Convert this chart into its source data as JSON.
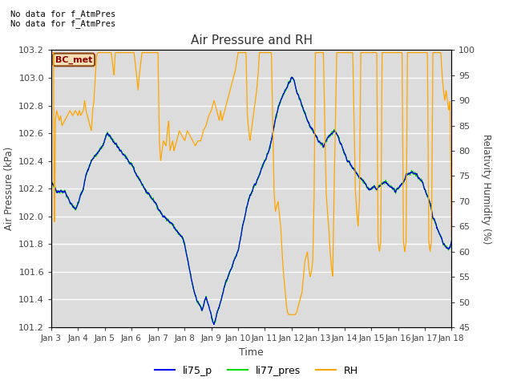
{
  "title": "Air Pressure and RH",
  "xlabel": "Time",
  "ylabel_left": "Air Pressure (kPa)",
  "ylabel_right": "Relativity Humidity (%)",
  "ylim_left": [
    101.2,
    103.2
  ],
  "ylim_right": [
    45,
    100
  ],
  "yticks_left": [
    101.2,
    101.4,
    101.6,
    101.8,
    102.0,
    102.2,
    102.4,
    102.6,
    102.8,
    103.0,
    103.2
  ],
  "yticks_right": [
    45,
    50,
    55,
    60,
    65,
    70,
    75,
    80,
    85,
    90,
    95,
    100
  ],
  "xtick_labels": [
    "Jan 3",
    "Jan 4",
    "Jan 5",
    "Jan 6",
    "Jan 7",
    "Jan 8",
    "Jan 9",
    "Jan 10",
    "Jan 11",
    "Jan 12",
    "Jan 13",
    "Jan 14",
    "Jan 15",
    "Jan 16",
    "Jan 17",
    "Jan 18"
  ],
  "no_data_text1": "No data for f_AtmPres",
  "no_data_text2": "No data for f_AtmPres",
  "legend_label_text": "BC_met",
  "color_li75": "#0000EE",
  "color_li77": "#00DD00",
  "color_rh": "#FFA500",
  "bg_color": "#DCDCDC",
  "legend_entries": [
    "li75_p",
    "li77_pres",
    "RH"
  ]
}
